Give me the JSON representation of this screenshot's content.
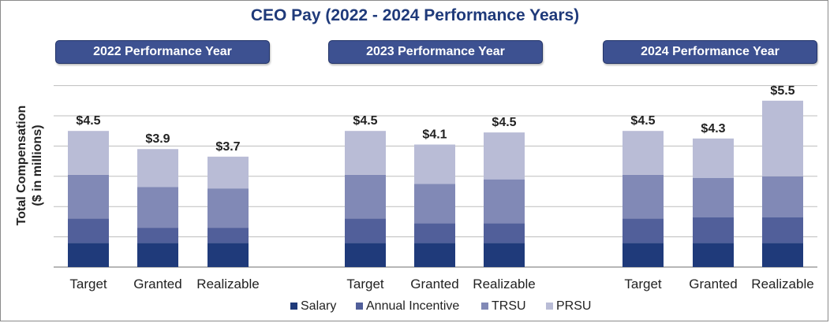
{
  "chart_data": {
    "type": "bar",
    "stacked": true,
    "title": "CEO Pay (2022 - 2024 Performance Years)",
    "ylabel_lines": [
      "Total Compensation",
      "($ in millions)"
    ],
    "ylim": [
      0,
      6
    ],
    "grid": true,
    "legend_position": "bottom",
    "colors": {
      "Salary": "#1f3a7a",
      "Annual Incentive": "#515f9a",
      "TRSU": "#8189b6",
      "PRSU": "#b9bcd6",
      "panel_header": "#3d5191",
      "title": "#1f3a7a"
    },
    "series_names": [
      "Salary",
      "Annual Incentive",
      "TRSU",
      "PRSU"
    ],
    "panels": [
      {
        "header": "2022 Performance Year",
        "categories": [
          "Target",
          "Granted",
          "Realizable"
        ],
        "totals": [
          "$4.5",
          "$3.9",
          "$3.7"
        ],
        "series": [
          {
            "name": "Salary",
            "values": [
              0.8,
              0.8,
              0.8
            ]
          },
          {
            "name": "Annual Incentive",
            "values": [
              0.8,
              0.5,
              0.5
            ]
          },
          {
            "name": "TRSU",
            "values": [
              1.45,
              1.35,
              1.3
            ]
          },
          {
            "name": "PRSU",
            "values": [
              1.45,
              1.25,
              1.05
            ]
          }
        ]
      },
      {
        "header": "2023 Performance Year",
        "categories": [
          "Target",
          "Granted",
          "Realizable"
        ],
        "totals": [
          "$4.5",
          "$4.1",
          "$4.5"
        ],
        "series": [
          {
            "name": "Salary",
            "values": [
              0.8,
              0.8,
              0.8
            ]
          },
          {
            "name": "Annual Incentive",
            "values": [
              0.8,
              0.65,
              0.65
            ]
          },
          {
            "name": "TRSU",
            "values": [
              1.45,
              1.3,
              1.45
            ]
          },
          {
            "name": "PRSU",
            "values": [
              1.45,
              1.3,
              1.55
            ]
          }
        ]
      },
      {
        "header": "2024 Performance Year",
        "categories": [
          "Target",
          "Granted",
          "Realizable"
        ],
        "totals": [
          "$4.5",
          "$4.3",
          "$5.5"
        ],
        "series": [
          {
            "name": "Salary",
            "values": [
              0.8,
              0.8,
              0.8
            ]
          },
          {
            "name": "Annual Incentive",
            "values": [
              0.8,
              0.85,
              0.85
            ]
          },
          {
            "name": "TRSU",
            "values": [
              1.45,
              1.3,
              1.35
            ]
          },
          {
            "name": "PRSU",
            "values": [
              1.45,
              1.3,
              2.5
            ]
          }
        ]
      }
    ]
  }
}
